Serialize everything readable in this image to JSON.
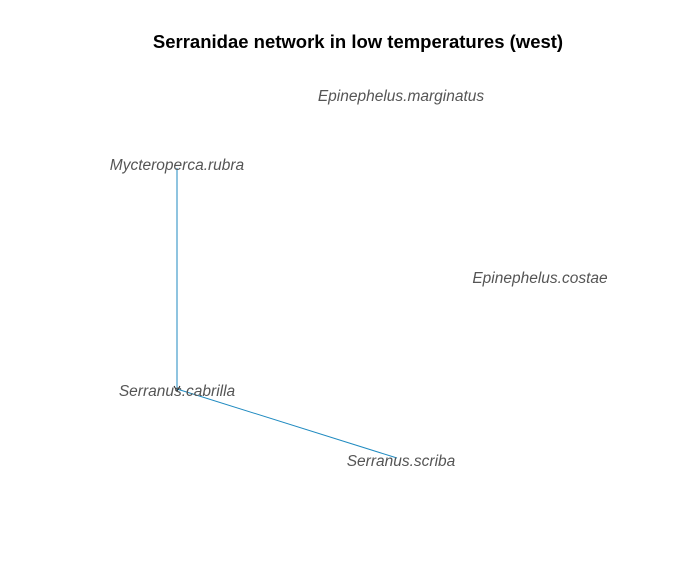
{
  "title": "Serranidae network in low temperatures (west)",
  "colors": {
    "edge": "#1f8ac0",
    "label": "#555555",
    "title": "#000000",
    "background": "#ffffff"
  },
  "nodes": [
    {
      "id": "epinephelus-marginatus",
      "label": "Epinephelus.marginatus"
    },
    {
      "id": "mycteroperca-rubra",
      "label": "Mycteroperca.rubra"
    },
    {
      "id": "epinephelus-costae",
      "label": "Epinephelus.costae"
    },
    {
      "id": "serranus-cabrilla",
      "label": "Serranus.cabrilla"
    },
    {
      "id": "serranus-scriba",
      "label": "Serranus.scriba"
    }
  ],
  "edges": [
    {
      "source": "serranus-cabrilla",
      "target": "mycteroperca-rubra"
    },
    {
      "source": "serranus-cabrilla",
      "target": "serranus-scriba"
    }
  ]
}
